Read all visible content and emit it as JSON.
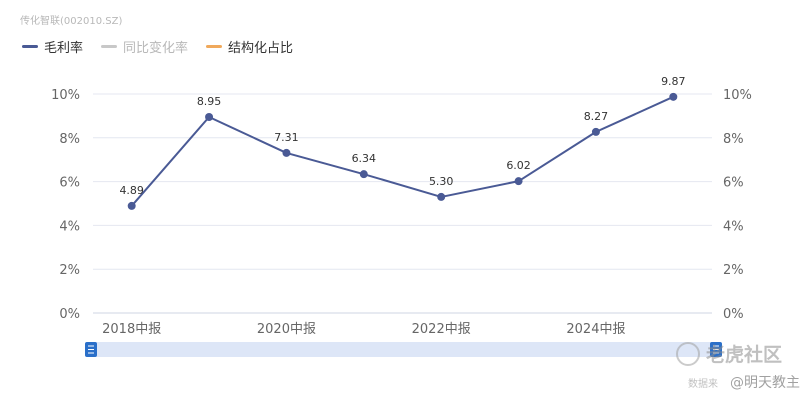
{
  "source_label": "传化智联(002010.SZ)",
  "legend": [
    {
      "label": "毛利率",
      "color": "#4a5a95",
      "active": true
    },
    {
      "label": "同比变化率",
      "color": "#c8c8c8",
      "active": false
    },
    {
      "label": "结构化占比",
      "color": "#f0a95c",
      "active": true
    }
  ],
  "colors": {
    "series": "#4a5a95",
    "grid": "#e4e7f0",
    "axis_text": "#666666",
    "slider_bg": "#dde6f7",
    "slider_handle": "#2a6fc9"
  },
  "chart_data": {
    "type": "line",
    "series": [
      {
        "name": "毛利率",
        "values": [
          4.89,
          8.95,
          7.31,
          6.34,
          5.3,
          6.02,
          8.27,
          9.87
        ]
      }
    ],
    "x_tick_labels": [
      "2018中报",
      "2020中报",
      "2022中报",
      "2024中报"
    ],
    "y_tick_labels": [
      "0%",
      "2%",
      "4%",
      "6%",
      "8%",
      "10%"
    ],
    "data_labels": [
      "4.89",
      "8.95",
      "7.31",
      "6.34",
      "5.30",
      "6.02",
      "8.27",
      "9.87"
    ],
    "ylim": [
      0,
      10
    ],
    "grid": true,
    "dual_y_axis": true
  },
  "slider": {
    "left_handle_icon": "slider-handle-icon",
    "right_handle_icon": "slider-handle-icon"
  },
  "watermark": {
    "brand": "老虎社区",
    "source": "数据来",
    "user": "@明天教主"
  }
}
